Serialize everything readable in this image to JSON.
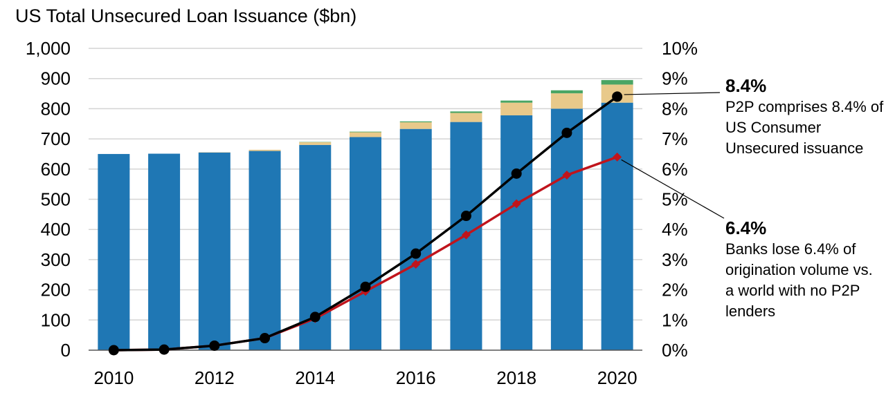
{
  "chart_data": {
    "type": "bar",
    "title": "US Total Unsecured Loan Issuance ($bn)",
    "x": [
      2010,
      2011,
      2012,
      2013,
      2014,
      2015,
      2016,
      2017,
      2018,
      2019,
      2020
    ],
    "x_tick_labels": [
      "2010",
      "2012",
      "2014",
      "2016",
      "2018",
      "2020"
    ],
    "ylim_left": [
      0,
      1000
    ],
    "left_ticks": [
      "0",
      "100",
      "200",
      "300",
      "400",
      "500",
      "600",
      "700",
      "800",
      "900",
      "1,000"
    ],
    "ylim_right": [
      0,
      10
    ],
    "right_ticks": [
      "0%",
      "1%",
      "2%",
      "3%",
      "4%",
      "5%",
      "6%",
      "7%",
      "8%",
      "9%",
      "10%"
    ],
    "grid": true,
    "stacked_series": [
      {
        "color": "#1f77b4",
        "values": [
          650,
          651,
          655,
          660,
          680,
          706,
          733,
          756,
          778,
          800,
          820
        ]
      },
      {
        "color": "#e8c98a",
        "values": [
          0,
          0,
          1,
          4,
          9,
          16,
          22,
          30,
          42,
          51,
          60
        ]
      },
      {
        "color": "#4aa564",
        "values": [
          0,
          0,
          0,
          0,
          1,
          2,
          3,
          5,
          7,
          10,
          15
        ]
      }
    ],
    "line_series": [
      {
        "axis": "right",
        "color": "#000000",
        "marker": "circle",
        "values": [
          0.0,
          0.02,
          0.15,
          0.4,
          1.1,
          2.1,
          3.2,
          4.45,
          5.85,
          7.2,
          8.4
        ]
      },
      {
        "axis": "right",
        "color": "#c0141c",
        "marker": "diamond",
        "values": [
          0.0,
          0.02,
          0.15,
          0.4,
          1.05,
          1.95,
          2.85,
          3.82,
          4.85,
          5.8,
          6.4
        ]
      }
    ],
    "annotations": [
      {
        "value": "8.4%",
        "text": "P2P comprises 8.4% of US Consumer Unsecured issuance"
      },
      {
        "value": "6.4%",
        "text": "Banks lose 6.4% of origination volume vs. a world with no P2P lenders"
      }
    ]
  }
}
